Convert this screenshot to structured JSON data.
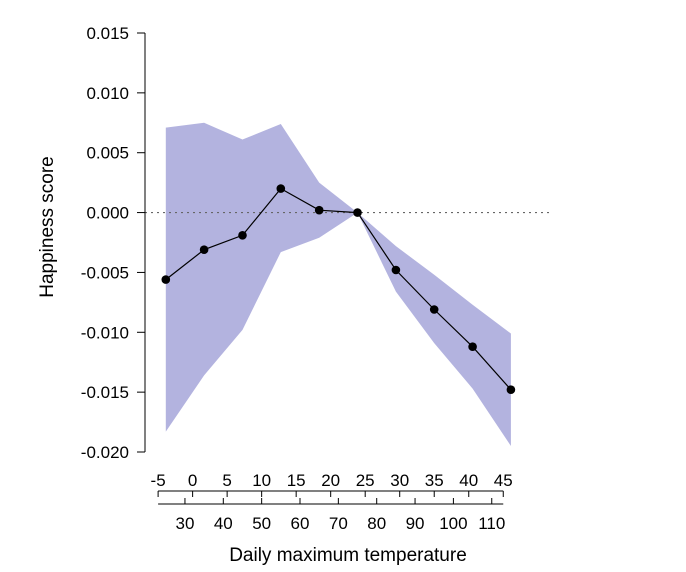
{
  "chart_data": {
    "type": "line",
    "title": "",
    "xlabel": "Daily maximum temperature",
    "ylabel": "Happiness score",
    "y_axis": {
      "ticks": [
        0.015,
        0.01,
        0.005,
        0.0,
        -0.005,
        -0.01,
        -0.015,
        -0.02
      ],
      "tick_labels": [
        "0.015",
        "0.010",
        "0.005",
        "0.000",
        "-0.005",
        "-0.010",
        "-0.015",
        "-0.020"
      ],
      "ylim": [
        -0.02,
        0.015
      ]
    },
    "x_axis_celsius": {
      "ticks": [
        -5,
        0,
        5,
        10,
        15,
        20,
        25,
        30,
        35,
        40,
        45
      ],
      "tick_labels": [
        "-5",
        "0",
        "5",
        "10",
        "15",
        "20",
        "25",
        "30",
        "35",
        "40",
        "45"
      ]
    },
    "x_axis_fahrenheit": {
      "ticks": [
        30,
        40,
        50,
        60,
        70,
        80,
        90,
        100,
        110
      ],
      "tick_labels": [
        "30",
        "40",
        "50",
        "60",
        "70",
        "80",
        "90",
        "100",
        "110"
      ]
    },
    "xlim_fahrenheit": [
      20,
      117
    ],
    "reference_line_y": 0,
    "series": [
      {
        "x_fahrenheit": [
          25,
          35,
          45,
          55,
          65,
          75,
          85,
          95,
          105,
          115
        ],
        "y": [
          -0.0056,
          -0.0031,
          -0.0019,
          0.002,
          0.0002,
          0.0,
          -0.0048,
          -0.0081,
          -0.0112,
          -0.0148
        ],
        "ci_upper": [
          0.0071,
          0.0075,
          0.0061,
          0.0074,
          0.0025,
          0.0,
          -0.0028,
          -0.0052,
          -0.0077,
          -0.0101
        ],
        "ci_lower": [
          -0.0183,
          -0.0136,
          -0.0098,
          -0.0033,
          -0.0021,
          0.0,
          -0.0066,
          -0.0109,
          -0.0147,
          -0.0195
        ]
      }
    ],
    "colors": {
      "band": "#b3b3df",
      "line": "#000000",
      "point": "#000000",
      "reference": "#666666"
    }
  }
}
